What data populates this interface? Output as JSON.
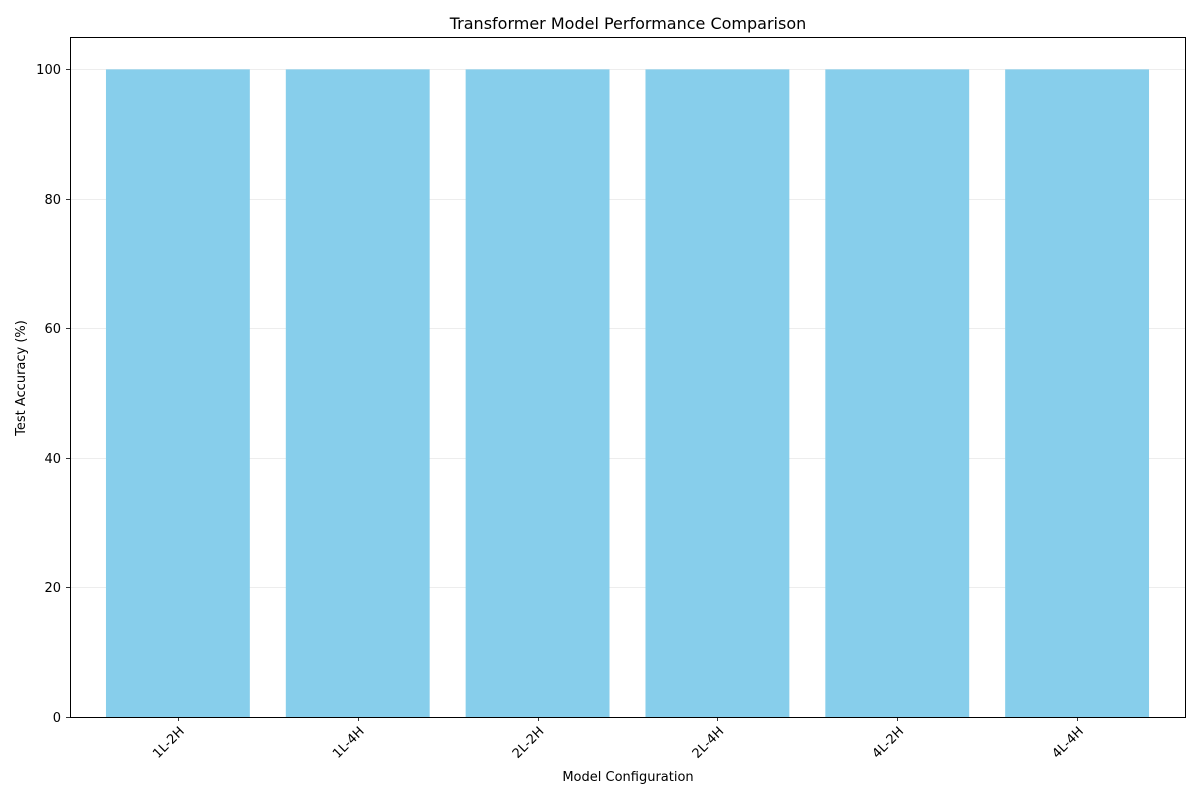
{
  "chart_data": {
    "type": "bar",
    "title": "Transformer Model Performance Comparison",
    "xlabel": "Model Configuration",
    "ylabel": "Test Accuracy (%)",
    "categories": [
      "1L-2H",
      "1L-4H",
      "2L-2H",
      "2L-4H",
      "4L-2H",
      "4L-4H"
    ],
    "values": [
      100,
      100,
      100,
      100,
      100,
      100
    ],
    "ylim": [
      0,
      105
    ],
    "yticks": [
      0,
      20,
      40,
      60,
      80,
      100
    ],
    "xtick_rotation_deg": 45,
    "grid": "y-axis",
    "legend": "none",
    "colors": {
      "bar": "#87ceeb",
      "axis": "#000000",
      "grid": "#b0b0b0"
    }
  }
}
